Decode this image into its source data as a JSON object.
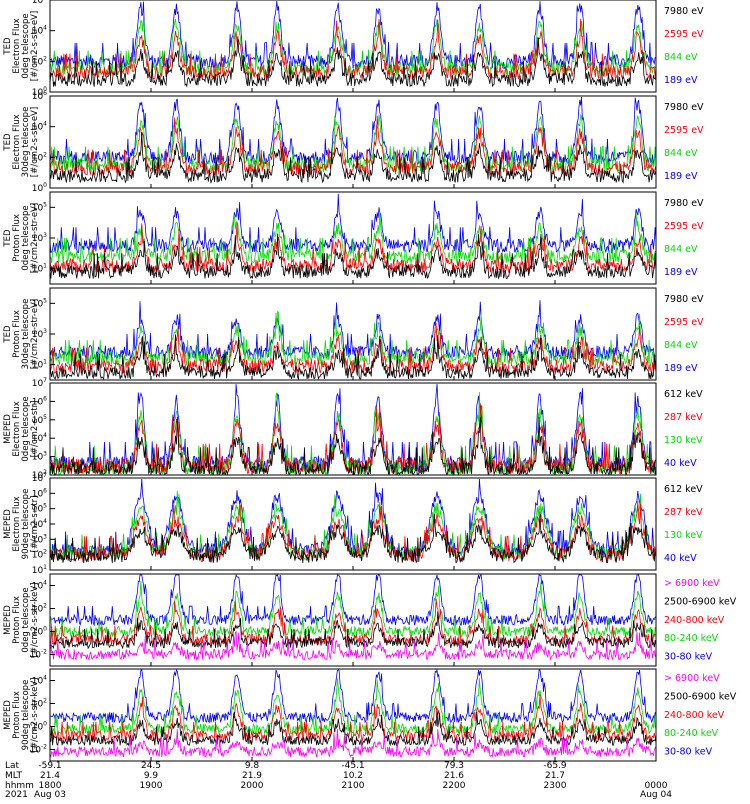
{
  "chart_data": [
    {
      "type": "line",
      "ylabel_lines": [
        "TED",
        "Electron Flux",
        "0deg telescope",
        "[#/cm2-s-str-eV]"
      ],
      "ytick_exponents": [
        0,
        2,
        4,
        6
      ],
      "ylim_log10": [
        0,
        6
      ],
      "legend": [
        {
          "name": "7980 eV",
          "color": "#000000"
        },
        {
          "name": "2595 eV",
          "color": "#ff0000"
        },
        {
          "name": "844 eV",
          "color": "#00dd00"
        },
        {
          "name": "189 eV",
          "color": "#0000ff"
        }
      ],
      "shape": "electron",
      "series_levels_log10": {
        "189 eV": 2.0,
        "844 eV": 1.5,
        "2595 eV": 1.3,
        "7980 eV": 0.8
      }
    },
    {
      "type": "line",
      "ylabel_lines": [
        "TED",
        "Electron Flux",
        "30deg telescope",
        "[#/cm2-s-str-eV]"
      ],
      "ytick_exponents": [
        0,
        2,
        4,
        6
      ],
      "ylim_log10": [
        0,
        6
      ],
      "legend": [
        {
          "name": "7980 eV",
          "color": "#000000"
        },
        {
          "name": "2595 eV",
          "color": "#ff0000"
        },
        {
          "name": "844 eV",
          "color": "#00dd00"
        },
        {
          "name": "189 eV",
          "color": "#0000ff"
        }
      ],
      "shape": "electron",
      "series_levels_log10": {
        "189 eV": 2.0,
        "844 eV": 1.5,
        "2595 eV": 1.3,
        "7980 eV": 0.8
      }
    },
    {
      "type": "line",
      "ylabel_lines": [
        "TED",
        "Proton Flux",
        "0deg telescope",
        "[#/cm2-s-str-eV]"
      ],
      "ytick_exponents": [
        1,
        3,
        5
      ],
      "ylim_log10": [
        0,
        6
      ],
      "legend": [
        {
          "name": "7980 eV",
          "color": "#000000"
        },
        {
          "name": "2595 eV",
          "color": "#ff0000"
        },
        {
          "name": "844 eV",
          "color": "#00dd00"
        },
        {
          "name": "189 eV",
          "color": "#0000ff"
        }
      ],
      "shape": "proton",
      "series_levels_log10": {
        "189 eV": 2.5,
        "844 eV": 1.8,
        "2595 eV": 1.2,
        "7980 eV": 0.8
      }
    },
    {
      "type": "line",
      "ylabel_lines": [
        "TED",
        "Proton Flux",
        "30deg telescope",
        "[#/cm2-s-str-eV]"
      ],
      "ytick_exponents": [
        1,
        3,
        5
      ],
      "ylim_log10": [
        0,
        6
      ],
      "legend": [
        {
          "name": "7980 eV",
          "color": "#000000"
        },
        {
          "name": "2595 eV",
          "color": "#ff0000"
        },
        {
          "name": "844 eV",
          "color": "#00dd00"
        },
        {
          "name": "189 eV",
          "color": "#0000ff"
        }
      ],
      "shape": "proton",
      "series_levels_log10": {
        "189 eV": 1.8,
        "844 eV": 1.4,
        "2595 eV": 0.9,
        "7980 eV": 0.5
      }
    },
    {
      "type": "line",
      "ylabel_lines": [
        "MEPED",
        "Electron Flux",
        "0deg telescope",
        "[#/cm2-s-str]"
      ],
      "ytick_exponents": [
        2,
        3,
        4,
        5,
        6,
        7
      ],
      "ylim_log10": [
        2,
        7
      ],
      "legend": [
        {
          "name": "612 keV",
          "color": "#000000"
        },
        {
          "name": "287 keV",
          "color": "#ff0000"
        },
        {
          "name": "130 keV",
          "color": "#00dd00"
        },
        {
          "name": "40 keV",
          "color": "#0000ff"
        }
      ],
      "shape": "meped_e0",
      "series_levels_log10": {
        "40 keV": 2.6,
        "130 keV": 2.4,
        "287 keV": 2.5,
        "612 keV": 2.3
      }
    },
    {
      "type": "line",
      "ylabel_lines": [
        "MEPED",
        "Electron Flux",
        "90deg telescope",
        "[#/cm2-s-str]"
      ],
      "ytick_exponents": [
        1,
        2,
        3,
        4,
        5,
        6,
        7
      ],
      "ylim_log10": [
        1,
        7
      ],
      "legend": [
        {
          "name": "612 keV",
          "color": "#000000"
        },
        {
          "name": "287 keV",
          "color": "#ff0000"
        },
        {
          "name": "130 keV",
          "color": "#00dd00"
        },
        {
          "name": "40 keV",
          "color": "#0000ff"
        }
      ],
      "shape": "meped_e90",
      "series_levels_log10": {
        "40 keV": 2.3,
        "130 keV": 2.1,
        "287 keV": 2.0,
        "612 keV": 1.9
      }
    },
    {
      "type": "line",
      "ylabel_lines": [
        "MEPED",
        "Proton Flux",
        "0deg telescope",
        "[#/cm2-s-str-keV]"
      ],
      "ytick_exponents": [
        -2,
        0,
        2,
        4
      ],
      "ylim_log10": [
        -3,
        5
      ],
      "legend": [
        {
          "name": "> 6900 keV",
          "color": "#ff00ff"
        },
        {
          "name": "2500-6900 keV",
          "color": "#000000"
        },
        {
          "name": "240-800 keV",
          "color": "#ff0000"
        },
        {
          "name": "80-240 keV",
          "color": "#00dd00"
        },
        {
          "name": "30-80 keV",
          "color": "#0000ff"
        }
      ],
      "shape": "meped_p",
      "series_levels_log10": {
        "30-80 keV": 1.0,
        "80-240 keV": 0.0,
        "240-800 keV": -0.7,
        "2500-6900 keV": -1.0,
        "> 6900 keV": -2.0
      }
    },
    {
      "type": "line",
      "ylabel_lines": [
        "MEPED",
        "Proton Flux",
        "90deg telescope",
        "[#/cm2-s-str-keV]"
      ],
      "ytick_exponents": [
        -2,
        0,
        2,
        4
      ],
      "ylim_log10": [
        -3,
        5
      ],
      "legend": [
        {
          "name": "> 6900 keV",
          "color": "#ff00ff"
        },
        {
          "name": "2500-6900 keV",
          "color": "#000000"
        },
        {
          "name": "240-800 keV",
          "color": "#ff0000"
        },
        {
          "name": "80-240 keV",
          "color": "#00dd00"
        },
        {
          "name": "30-80 keV",
          "color": "#0000ff"
        }
      ],
      "shape": "meped_p",
      "series_levels_log10": {
        "30-80 keV": 0.8,
        "80-240 keV": -0.2,
        "240-800 keV": -0.8,
        "2500-6900 keV": -1.2,
        "> 6900 keV": -2.2
      }
    }
  ],
  "x_axis": {
    "row_labels": [
      "Lat",
      "MLT",
      "hhmm",
      "2021"
    ],
    "lat": [
      "-59.1",
      "24.5",
      "9.8",
      "-45.1",
      "79.3",
      "-65.9"
    ],
    "mlt": [
      "21.4",
      "9.9",
      "21.9",
      "10.2",
      "21.6",
      "21.7"
    ],
    "hhmm": [
      "1800",
      "1900",
      "2000",
      "2100",
      "2200",
      "2300",
      "0000"
    ],
    "dates": [
      "Aug 03",
      "Aug 04"
    ],
    "time_range_hours": [
      18,
      24
    ]
  },
  "peak_times_hours": [
    18.9,
    19.25,
    19.85,
    20.25,
    20.85,
    21.25,
    21.83,
    22.25,
    22.85,
    23.25,
    23.82
  ],
  "colors": {
    "black": "#000000",
    "red": "#ff0000",
    "green": "#00dd00",
    "blue": "#0000ff",
    "magenta": "#ff00ff"
  }
}
